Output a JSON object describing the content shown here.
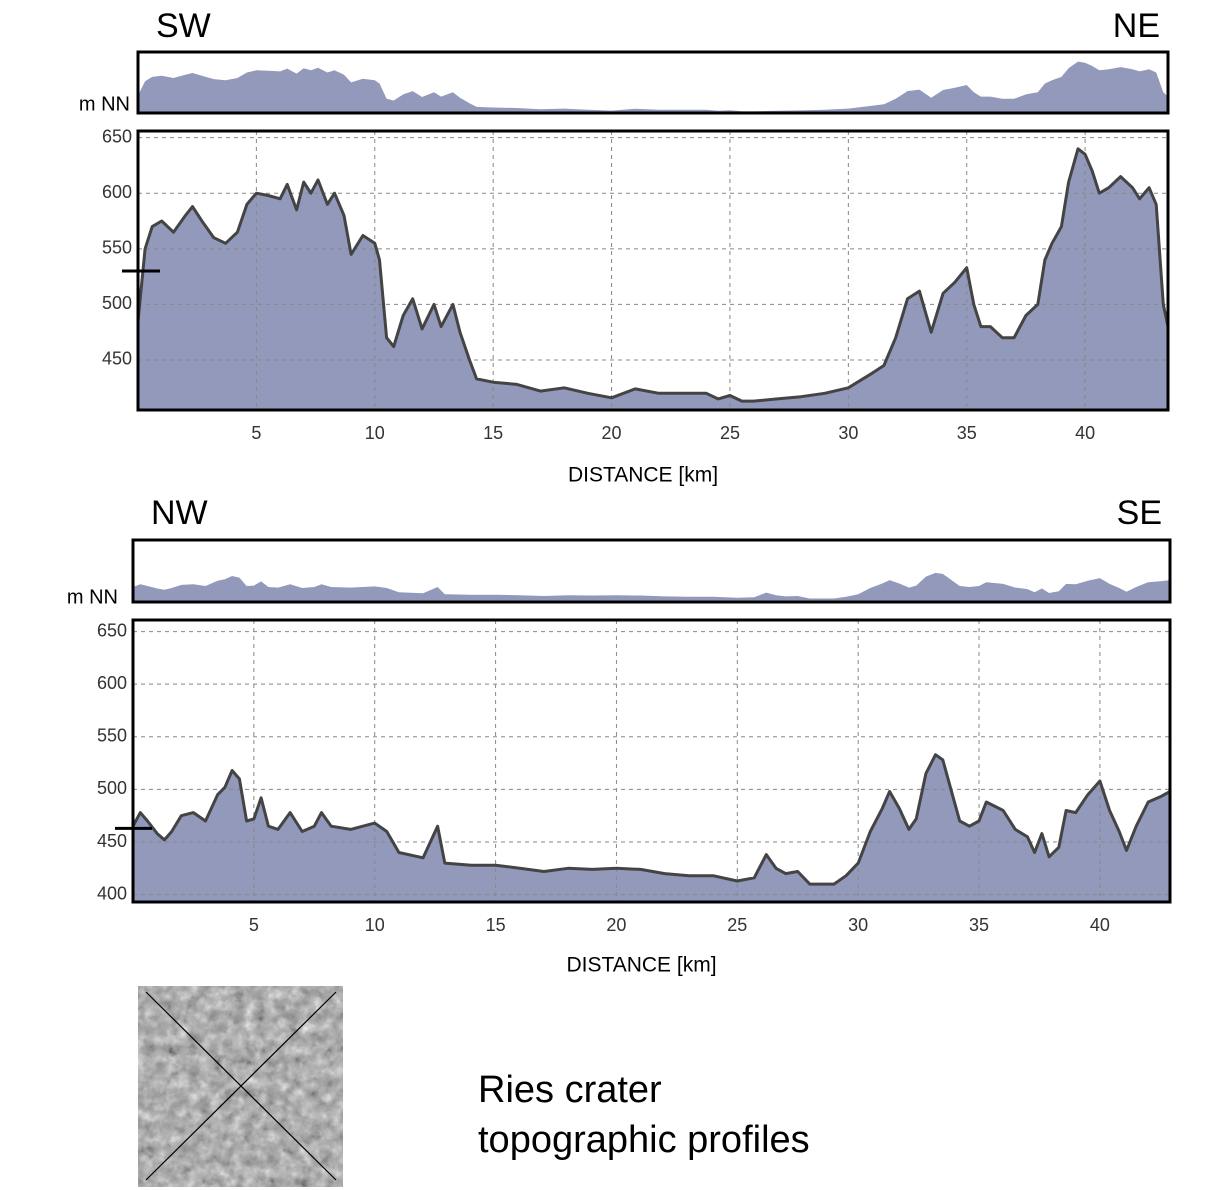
{
  "caption": [
    "Ries crater",
    "topographic profiles"
  ],
  "chart_data": [
    {
      "type": "area",
      "direction_left": "SW",
      "direction_right": "NE",
      "y_label": "m NN",
      "x_label": "DISTANCE [km]",
      "color": "#9299bb",
      "line_color": "#444444",
      "grid": true,
      "reference_level": 530,
      "xlim": [
        0,
        43.5
      ],
      "ylim": [
        405,
        656
      ],
      "xticks": [
        5,
        10,
        15,
        20,
        25,
        30,
        35,
        40
      ],
      "yticks": [
        450,
        500,
        550,
        600,
        650
      ],
      "x": [
        0,
        0.3,
        0.6,
        1,
        1.5,
        2,
        2.3,
        2.7,
        3.2,
        3.7,
        4.2,
        4.6,
        5,
        5.5,
        6,
        6.3,
        6.7,
        7,
        7.3,
        7.6,
        8,
        8.3,
        8.7,
        9,
        9.5,
        10,
        10.2,
        10.5,
        10.8,
        11.2,
        11.6,
        12,
        12.5,
        12.8,
        13.3,
        13.6,
        14,
        14.3,
        15,
        16,
        17,
        18,
        19,
        20,
        21,
        22,
        23,
        24,
        24.5,
        25,
        25.5,
        26,
        27,
        28,
        29,
        30,
        31,
        31.5,
        32,
        32.5,
        33,
        33.5,
        34,
        34.5,
        35,
        35.3,
        35.6,
        36,
        36.5,
        37,
        37.5,
        38,
        38.3,
        38.6,
        39,
        39.3,
        39.7,
        40,
        40.3,
        40.6,
        41,
        41.5,
        42,
        42.3,
        42.7,
        43,
        43.3,
        43.5
      ],
      "values": [
        485,
        550,
        570,
        575,
        565,
        580,
        588,
        575,
        560,
        555,
        565,
        590,
        600,
        598,
        595,
        608,
        585,
        610,
        600,
        612,
        590,
        600,
        580,
        545,
        562,
        555,
        540,
        470,
        462,
        490,
        505,
        478,
        500,
        480,
        500,
        475,
        450,
        433,
        430,
        428,
        422,
        425,
        420,
        416,
        424,
        420,
        420,
        420,
        415,
        418,
        413,
        413,
        415,
        417,
        420,
        425,
        438,
        445,
        470,
        505,
        512,
        475,
        510,
        520,
        533,
        500,
        480,
        480,
        470,
        470,
        490,
        500,
        540,
        555,
        570,
        610,
        640,
        635,
        620,
        600,
        605,
        615,
        605,
        595,
        605,
        590,
        500,
        480
      ]
    },
    {
      "type": "area",
      "direction_left": "NW",
      "direction_right": "SE",
      "y_label": "m NN",
      "x_label": "DISTANCE [km]",
      "color": "#9299bb",
      "line_color": "#444444",
      "grid": true,
      "reference_level": 463,
      "xlim": [
        0,
        42.9
      ],
      "ylim": [
        393,
        661
      ],
      "xticks": [
        5,
        10,
        15,
        20,
        25,
        30,
        35,
        40
      ],
      "yticks": [
        400,
        450,
        500,
        550,
        600,
        650
      ],
      "x": [
        0,
        0.3,
        0.6,
        1,
        1.3,
        1.6,
        2,
        2.5,
        3,
        3.5,
        3.8,
        4.1,
        4.4,
        4.7,
        5,
        5.3,
        5.6,
        6,
        6.5,
        7,
        7.5,
        7.8,
        8.2,
        9,
        10,
        10.5,
        11,
        12,
        12.6,
        12.9,
        14,
        15,
        16,
        17,
        18,
        19,
        20,
        21,
        22,
        23,
        24,
        25,
        25.7,
        26.2,
        26.6,
        27,
        27.5,
        28,
        29,
        29.5,
        30,
        30.5,
        31,
        31.3,
        31.7,
        32.1,
        32.4,
        32.8,
        33.2,
        33.5,
        33.9,
        34.2,
        34.6,
        35,
        35.3,
        36,
        36.5,
        37,
        37.3,
        37.6,
        37.9,
        38.3,
        38.6,
        39,
        39.5,
        40,
        40.4,
        40.8,
        41.1,
        41.5,
        42,
        42.5,
        42.9
      ],
      "values": [
        465,
        478,
        470,
        458,
        452,
        460,
        475,
        478,
        470,
        495,
        502,
        518,
        510,
        470,
        472,
        492,
        465,
        462,
        478,
        460,
        465,
        478,
        465,
        462,
        468,
        460,
        440,
        435,
        465,
        430,
        428,
        428,
        425,
        422,
        425,
        424,
        425,
        424,
        420,
        418,
        418,
        413,
        416,
        438,
        425,
        420,
        422,
        410,
        410,
        418,
        430,
        460,
        482,
        498,
        482,
        462,
        472,
        515,
        533,
        528,
        495,
        470,
        465,
        470,
        488,
        480,
        462,
        455,
        440,
        458,
        436,
        445,
        480,
        478,
        495,
        508,
        480,
        460,
        442,
        465,
        488,
        493,
        498
      ]
    }
  ]
}
